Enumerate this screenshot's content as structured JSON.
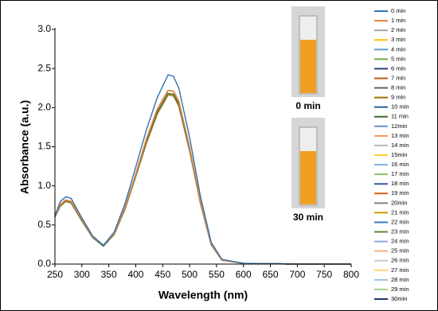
{
  "chart_data": {
    "type": "line",
    "xlabel": "Wavelength (nm)",
    "ylabel": "Absorbance  (a.u.)",
    "x": [
      250,
      260,
      270,
      280,
      300,
      320,
      340,
      360,
      380,
      400,
      420,
      440,
      460,
      470,
      480,
      500,
      520,
      540,
      560,
      600,
      700,
      800
    ],
    "xlim": [
      250,
      800
    ],
    "xticks": [
      250,
      300,
      350,
      400,
      450,
      500,
      550,
      600,
      650,
      700,
      750,
      800
    ],
    "ylim": [
      0,
      3
    ],
    "yticks": [
      {
        "value": 0,
        "label": "0.0"
      },
      0.5,
      {
        "value": 1,
        "label": "1.0"
      },
      1.5,
      {
        "value": 2,
        "label": "2.0"
      },
      2.5,
      {
        "value": 3,
        "label": "3.0"
      }
    ],
    "annotations": [
      "0 min",
      "30 min"
    ],
    "series": [
      {
        "name": "0 min",
        "color": "#2e75b6",
        "values": [
          0.62,
          0.8,
          0.86,
          0.84,
          0.59,
          0.36,
          0.24,
          0.41,
          0.77,
          1.24,
          1.72,
          2.13,
          2.42,
          2.4,
          2.25,
          1.62,
          0.87,
          0.28,
          0.06,
          0.01,
          0,
          0
        ]
      },
      {
        "name": "1 min",
        "color": "#ed7d31",
        "values": [
          0.62,
          0.76,
          0.82,
          0.8,
          0.57,
          0.35,
          0.24,
          0.39,
          0.72,
          1.15,
          1.6,
          1.98,
          2.22,
          2.21,
          2.08,
          1.49,
          0.8,
          0.26,
          0.05,
          0.01,
          0,
          0
        ]
      },
      {
        "name": "2 min",
        "color": "#a5a5a5",
        "values": [
          0.62,
          0.76,
          0.82,
          0.8,
          0.57,
          0.35,
          0.24,
          0.39,
          0.72,
          1.15,
          1.6,
          1.98,
          2.22,
          2.21,
          2.08,
          1.49,
          0.8,
          0.26,
          0.05,
          0.01,
          0,
          0
        ]
      },
      {
        "name": "3 min",
        "color": "#ffc000",
        "values": [
          0.62,
          0.76,
          0.82,
          0.8,
          0.57,
          0.35,
          0.24,
          0.39,
          0.72,
          1.15,
          1.6,
          1.98,
          2.22,
          2.21,
          2.08,
          1.49,
          0.8,
          0.26,
          0.05,
          0.01,
          0,
          0
        ]
      },
      {
        "name": "4 min",
        "color": "#5b9bd5",
        "values": [
          0.62,
          0.76,
          0.82,
          0.8,
          0.57,
          0.35,
          0.24,
          0.39,
          0.72,
          1.15,
          1.6,
          1.98,
          2.22,
          2.21,
          2.08,
          1.49,
          0.8,
          0.26,
          0.05,
          0.01,
          0,
          0
        ]
      },
      {
        "name": "5 min",
        "color": "#70ad47",
        "values": [
          0.62,
          0.76,
          0.82,
          0.8,
          0.57,
          0.35,
          0.24,
          0.39,
          0.72,
          1.15,
          1.6,
          1.98,
          2.22,
          2.21,
          2.08,
          1.49,
          0.8,
          0.26,
          0.05,
          0.01,
          0,
          0
        ]
      },
      {
        "name": "6 min",
        "color": "#264478",
        "values": [
          0.62,
          0.76,
          0.82,
          0.8,
          0.57,
          0.35,
          0.24,
          0.39,
          0.72,
          1.15,
          1.6,
          1.98,
          2.22,
          2.21,
          2.08,
          1.49,
          0.8,
          0.26,
          0.05,
          0.01,
          0,
          0
        ]
      },
      {
        "name": "7 min",
        "color": "#c55a11",
        "values": [
          0.62,
          0.76,
          0.82,
          0.8,
          0.57,
          0.35,
          0.24,
          0.39,
          0.72,
          1.15,
          1.6,
          1.98,
          2.22,
          2.21,
          2.08,
          1.49,
          0.8,
          0.26,
          0.05,
          0.01,
          0,
          0
        ]
      },
      {
        "name": "8 min",
        "color": "#636363",
        "values": [
          0.62,
          0.76,
          0.82,
          0.8,
          0.57,
          0.35,
          0.24,
          0.39,
          0.72,
          1.15,
          1.6,
          1.98,
          2.22,
          2.21,
          2.08,
          1.49,
          0.8,
          0.26,
          0.05,
          0.01,
          0,
          0
        ]
      },
      {
        "name": "9 min",
        "color": "#997300",
        "values": [
          0.62,
          0.76,
          0.82,
          0.8,
          0.57,
          0.35,
          0.24,
          0.39,
          0.72,
          1.15,
          1.6,
          1.98,
          2.22,
          2.21,
          2.08,
          1.49,
          0.8,
          0.26,
          0.05,
          0.01,
          0,
          0
        ]
      },
      {
        "name": "10 min",
        "color": "#255e91",
        "values": [
          0.62,
          0.76,
          0.82,
          0.8,
          0.57,
          0.35,
          0.24,
          0.39,
          0.72,
          1.15,
          1.6,
          1.98,
          2.22,
          2.21,
          2.08,
          1.49,
          0.8,
          0.26,
          0.05,
          0.01,
          0,
          0
        ]
      },
      {
        "name": "11 min",
        "color": "#43682b",
        "values": [
          0.61,
          0.75,
          0.81,
          0.79,
          0.56,
          0.34,
          0.23,
          0.38,
          0.71,
          1.13,
          1.57,
          1.94,
          2.18,
          2.17,
          2.04,
          1.46,
          0.79,
          0.25,
          0.05,
          0.01,
          0,
          0
        ]
      },
      {
        "name": "12min",
        "color": "#698ed0",
        "values": [
          0.61,
          0.75,
          0.81,
          0.79,
          0.56,
          0.34,
          0.23,
          0.38,
          0.71,
          1.13,
          1.57,
          1.94,
          2.18,
          2.17,
          2.04,
          1.46,
          0.79,
          0.25,
          0.05,
          0.01,
          0,
          0
        ]
      },
      {
        "name": "13 min",
        "color": "#f1975a",
        "values": [
          0.61,
          0.75,
          0.81,
          0.79,
          0.56,
          0.34,
          0.23,
          0.38,
          0.71,
          1.13,
          1.57,
          1.94,
          2.18,
          2.17,
          2.04,
          1.46,
          0.79,
          0.25,
          0.05,
          0.01,
          0,
          0
        ]
      },
      {
        "name": "14 min",
        "color": "#b7b7b7",
        "values": [
          0.61,
          0.75,
          0.81,
          0.79,
          0.56,
          0.34,
          0.23,
          0.38,
          0.71,
          1.13,
          1.57,
          1.94,
          2.18,
          2.17,
          2.04,
          1.46,
          0.79,
          0.25,
          0.05,
          0.01,
          0,
          0
        ]
      },
      {
        "name": "15min",
        "color": "#ffcd33",
        "values": [
          0.61,
          0.75,
          0.81,
          0.79,
          0.56,
          0.34,
          0.23,
          0.38,
          0.71,
          1.13,
          1.57,
          1.94,
          2.18,
          2.17,
          2.04,
          1.46,
          0.79,
          0.25,
          0.05,
          0.01,
          0,
          0
        ]
      },
      {
        "name": "16 min",
        "color": "#7cafdd",
        "values": [
          0.61,
          0.75,
          0.81,
          0.79,
          0.56,
          0.34,
          0.23,
          0.38,
          0.71,
          1.13,
          1.57,
          1.94,
          2.18,
          2.17,
          2.04,
          1.46,
          0.79,
          0.25,
          0.05,
          0.01,
          0,
          0
        ]
      },
      {
        "name": "17 min",
        "color": "#8cc168",
        "values": [
          0.61,
          0.75,
          0.81,
          0.79,
          0.56,
          0.34,
          0.23,
          0.38,
          0.71,
          1.13,
          1.57,
          1.94,
          2.18,
          2.17,
          2.04,
          1.46,
          0.79,
          0.25,
          0.05,
          0.01,
          0,
          0
        ]
      },
      {
        "name": "18 min",
        "color": "#335aa1",
        "values": [
          0.61,
          0.75,
          0.81,
          0.79,
          0.56,
          0.34,
          0.23,
          0.38,
          0.71,
          1.13,
          1.57,
          1.94,
          2.18,
          2.17,
          2.04,
          1.46,
          0.79,
          0.25,
          0.05,
          0.01,
          0,
          0
        ]
      },
      {
        "name": "19 min",
        "color": "#d26012",
        "values": [
          0.61,
          0.75,
          0.81,
          0.79,
          0.56,
          0.34,
          0.23,
          0.38,
          0.71,
          1.13,
          1.57,
          1.94,
          2.18,
          2.17,
          2.04,
          1.46,
          0.79,
          0.25,
          0.05,
          0.01,
          0,
          0
        ]
      },
      {
        "name": "20min",
        "color": "#828282",
        "values": [
          0.61,
          0.75,
          0.81,
          0.79,
          0.56,
          0.34,
          0.23,
          0.38,
          0.71,
          1.13,
          1.57,
          1.94,
          2.18,
          2.17,
          2.04,
          1.46,
          0.79,
          0.25,
          0.05,
          0.01,
          0,
          0
        ]
      },
      {
        "name": "21 min",
        "color": "#cc9a00",
        "values": [
          0.6,
          0.74,
          0.8,
          0.78,
          0.55,
          0.34,
          0.23,
          0.38,
          0.7,
          1.12,
          1.55,
          1.92,
          2.16,
          2.15,
          2.02,
          1.45,
          0.78,
          0.25,
          0.05,
          0.01,
          0,
          0
        ]
      },
      {
        "name": "22 min",
        "color": "#327dc2",
        "values": [
          0.6,
          0.74,
          0.8,
          0.78,
          0.55,
          0.34,
          0.23,
          0.38,
          0.7,
          1.12,
          1.55,
          1.92,
          2.16,
          2.15,
          2.02,
          1.45,
          0.78,
          0.25,
          0.05,
          0.01,
          0,
          0
        ]
      },
      {
        "name": "23 min",
        "color": "#5a8a39",
        "values": [
          0.6,
          0.74,
          0.8,
          0.78,
          0.55,
          0.34,
          0.23,
          0.38,
          0.7,
          1.12,
          1.55,
          1.92,
          2.16,
          2.15,
          2.02,
          1.45,
          0.78,
          0.25,
          0.05,
          0.01,
          0,
          0
        ]
      },
      {
        "name": "24 min",
        "color": "#8faadc",
        "values": [
          0.6,
          0.74,
          0.8,
          0.78,
          0.55,
          0.34,
          0.23,
          0.38,
          0.7,
          1.12,
          1.55,
          1.92,
          2.16,
          2.15,
          2.02,
          1.45,
          0.78,
          0.25,
          0.05,
          0.01,
          0,
          0
        ]
      },
      {
        "name": "25 min",
        "color": "#f4b183",
        "values": [
          0.6,
          0.74,
          0.8,
          0.78,
          0.55,
          0.34,
          0.23,
          0.38,
          0.7,
          1.12,
          1.55,
          1.92,
          2.16,
          2.15,
          2.02,
          1.45,
          0.78,
          0.25,
          0.05,
          0.01,
          0,
          0
        ]
      },
      {
        "name": "26 min",
        "color": "#c9c9c9",
        "values": [
          0.6,
          0.74,
          0.8,
          0.78,
          0.55,
          0.34,
          0.23,
          0.38,
          0.7,
          1.12,
          1.55,
          1.92,
          2.16,
          2.15,
          2.02,
          1.45,
          0.78,
          0.25,
          0.05,
          0.01,
          0,
          0
        ]
      },
      {
        "name": "27 min",
        "color": "#ffd966",
        "values": [
          0.6,
          0.74,
          0.8,
          0.78,
          0.55,
          0.34,
          0.23,
          0.38,
          0.7,
          1.12,
          1.55,
          1.92,
          2.16,
          2.15,
          2.02,
          1.45,
          0.78,
          0.25,
          0.05,
          0.01,
          0,
          0
        ]
      },
      {
        "name": "28 min",
        "color": "#9dc3e6",
        "values": [
          0.6,
          0.74,
          0.8,
          0.78,
          0.55,
          0.34,
          0.23,
          0.38,
          0.7,
          1.12,
          1.55,
          1.92,
          2.16,
          2.15,
          2.02,
          1.45,
          0.78,
          0.25,
          0.05,
          0.01,
          0,
          0
        ]
      },
      {
        "name": "29 min",
        "color": "#a9d18e",
        "values": [
          0.6,
          0.74,
          0.8,
          0.78,
          0.55,
          0.34,
          0.23,
          0.38,
          0.7,
          1.12,
          1.55,
          1.92,
          2.16,
          2.15,
          2.02,
          1.45,
          0.78,
          0.25,
          0.05,
          0.01,
          0,
          0
        ]
      },
      {
        "name": "30min",
        "color": "#203864",
        "values": [
          0.6,
          0.74,
          0.8,
          0.78,
          0.55,
          0.34,
          0.23,
          0.38,
          0.7,
          1.12,
          1.55,
          1.92,
          2.16,
          2.15,
          2.02,
          1.45,
          0.78,
          0.25,
          0.05,
          0.01,
          0,
          0
        ]
      }
    ]
  }
}
